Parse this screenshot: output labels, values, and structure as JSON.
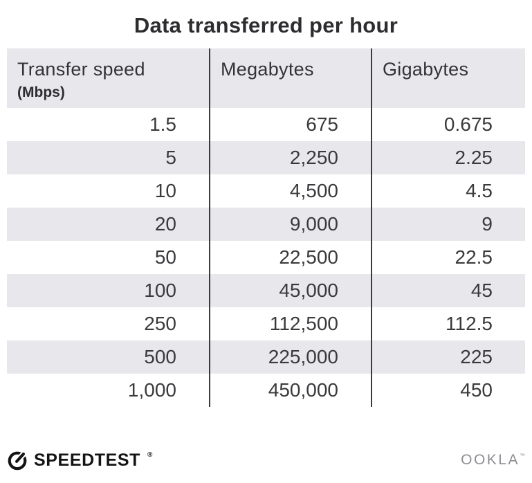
{
  "title": "Data transferred per hour",
  "table": {
    "columns": [
      {
        "label": "Transfer speed",
        "sublabel": "(Mbps)"
      },
      {
        "label": "Megabytes"
      },
      {
        "label": "Gigabytes"
      }
    ],
    "rows": [
      [
        "1.5",
        "675",
        "0.675"
      ],
      [
        "5",
        "2,250",
        "2.25"
      ],
      [
        "10",
        "4,500",
        "4.5"
      ],
      [
        "20",
        "9,000",
        "9"
      ],
      [
        "50",
        "22,500",
        "22.5"
      ],
      [
        "100",
        "45,000",
        "45"
      ],
      [
        "250",
        "112,500",
        "112.5"
      ],
      [
        "500",
        "225,000",
        "225"
      ],
      [
        "1,000",
        "450,000",
        "450"
      ]
    ]
  },
  "footer": {
    "brand": "SPEEDTEST",
    "brand_mark": "®",
    "attribution": "OOKLA",
    "attribution_mark": "™"
  },
  "colors": {
    "stripe": "#e8e7ec",
    "text": "#3a3a3d",
    "divider": "#3b3b3d",
    "title": "#2d2d30",
    "ookla_gray": "#8f8d92"
  },
  "chart_data": {
    "type": "table",
    "title": "Data transferred per hour",
    "columns": [
      "Transfer speed (Mbps)",
      "Megabytes",
      "Gigabytes"
    ],
    "rows": [
      [
        1.5,
        675,
        0.675
      ],
      [
        5,
        2250,
        2.25
      ],
      [
        10,
        4500,
        4.5
      ],
      [
        20,
        9000,
        9
      ],
      [
        50,
        22500,
        22.5
      ],
      [
        100,
        45000,
        45
      ],
      [
        250,
        112500,
        112.5
      ],
      [
        500,
        225000,
        225
      ],
      [
        1000,
        450000,
        450
      ]
    ],
    "layout": {
      "striped_rows": true,
      "header_background": "#e8e7ec",
      "column_dividers": true
    }
  }
}
